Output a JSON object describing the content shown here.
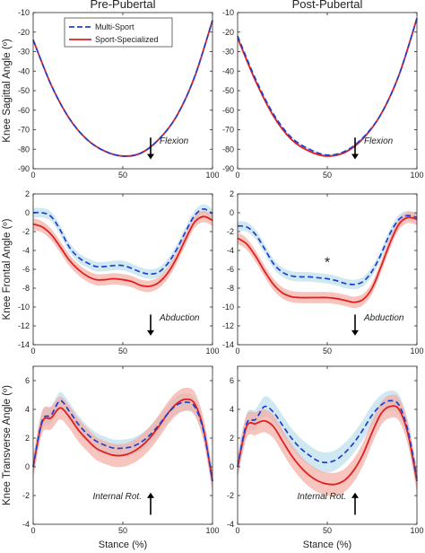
{
  "colors": {
    "multi_line": "#1f3fd0",
    "multi_band": "#bfe0ee",
    "spec_line": "#e02020",
    "spec_band": "#f3aba3"
  },
  "chart_data": [
    {
      "type": "line",
      "title": "Pre-Pubertal",
      "xlabel": "",
      "ylabel": "Knee Sagittal Angle (º)",
      "xlim": [
        0,
        100
      ],
      "ylim": [
        -90,
        -10
      ],
      "xticks": [
        "0",
        "50",
        "100"
      ],
      "yticks": [
        "-10",
        "-20",
        "-30",
        "-40",
        "-50",
        "-60",
        "-70",
        "-80",
        "-90"
      ],
      "annotation": "Flexion",
      "arrow": "down",
      "legend": {
        "position": "top-left",
        "entries": [
          "Multi-Sport",
          "Sport-Specialized"
        ]
      },
      "x": [
        0,
        10,
        20,
        30,
        40,
        50,
        60,
        70,
        80,
        90,
        100
      ],
      "series": [
        {
          "name": "Multi-Sport",
          "values": [
            -24,
            -47,
            -64,
            -75,
            -81,
            -83.5,
            -82,
            -75,
            -63,
            -43,
            -14
          ],
          "band": 0.5
        },
        {
          "name": "Sport-Specialized",
          "values": [
            -24,
            -47,
            -64,
            -75,
            -81,
            -83.5,
            -82,
            -75,
            -63,
            -43,
            -14
          ],
          "band": 0.5
        }
      ]
    },
    {
      "type": "line",
      "title": "Post-Pubertal",
      "xlabel": "",
      "ylabel": "",
      "xlim": [
        0,
        100
      ],
      "ylim": [
        -90,
        -10
      ],
      "xticks": [
        "0",
        "50",
        "100"
      ],
      "yticks": [
        "-10",
        "-20",
        "-30",
        "-40",
        "-50",
        "-60",
        "-70",
        "-80",
        "-90"
      ],
      "annotation": "Flexion",
      "arrow": "down",
      "x": [
        0,
        10,
        20,
        30,
        40,
        50,
        60,
        70,
        80,
        90,
        100
      ],
      "series": [
        {
          "name": "Multi-Sport",
          "values": [
            -22,
            -44,
            -62,
            -74,
            -80,
            -83,
            -81,
            -74,
            -62,
            -42,
            -13
          ],
          "band": 0.6
        },
        {
          "name": "Sport-Specialized",
          "values": [
            -23,
            -45,
            -63,
            -75,
            -81,
            -83.5,
            -81.5,
            -74.5,
            -62,
            -42,
            -13
          ],
          "band": 0.6
        }
      ]
    },
    {
      "type": "line",
      "title": "",
      "xlabel": "",
      "ylabel": "Knee Frontal Angle (º)",
      "xlim": [
        0,
        100
      ],
      "ylim": [
        -14,
        2
      ],
      "xticks": [
        "0",
        "50",
        "100"
      ],
      "yticks": [
        "2",
        "0",
        "-2",
        "-4",
        "-6",
        "-8",
        "-10",
        "-12",
        "-14"
      ],
      "annotation": "Abduction",
      "arrow": "down",
      "x": [
        0,
        5,
        10,
        15,
        20,
        25,
        30,
        35,
        40,
        45,
        50,
        55,
        60,
        65,
        70,
        75,
        80,
        85,
        90,
        95,
        100
      ],
      "series": [
        {
          "name": "Multi-Sport",
          "values": [
            0,
            0,
            -0.4,
            -1.8,
            -3.6,
            -4.7,
            -5.3,
            -5.7,
            -5.7,
            -5.6,
            -5.6,
            -5.9,
            -6.3,
            -6.5,
            -6.3,
            -5.4,
            -3.9,
            -2.0,
            -0.3,
            0.4,
            -0.1
          ],
          "band": 0.5
        },
        {
          "name": "Sport-Specialized",
          "values": [
            -1.2,
            -1.5,
            -2.3,
            -3.6,
            -5.0,
            -6.0,
            -6.7,
            -7.1,
            -7.1,
            -7.0,
            -7.1,
            -7.3,
            -7.7,
            -7.8,
            -7.4,
            -6.4,
            -4.8,
            -2.8,
            -1.0,
            -0.4,
            -0.8
          ],
          "band": 0.6
        }
      ]
    },
    {
      "type": "line",
      "title": "",
      "xlabel": "",
      "ylabel": "",
      "xlim": [
        0,
        100
      ],
      "ylim": [
        -14,
        2
      ],
      "xticks": [
        "0",
        "50",
        "100"
      ],
      "yticks": [
        "2",
        "0",
        "-2",
        "-4",
        "-6",
        "-8",
        "-10",
        "-12",
        "-14"
      ],
      "annotation": "Abduction",
      "arrow": "down",
      "significance": {
        "marker": "*",
        "x": 50,
        "y": -5.2
      },
      "x": [
        0,
        5,
        10,
        15,
        20,
        25,
        30,
        35,
        40,
        45,
        50,
        55,
        60,
        65,
        70,
        75,
        80,
        85,
        90,
        95,
        100
      ],
      "series": [
        {
          "name": "Multi-Sport",
          "values": [
            -1.4,
            -1.5,
            -2.3,
            -3.8,
            -5.4,
            -6.3,
            -6.7,
            -6.8,
            -6.8,
            -6.9,
            -7.0,
            -7.2,
            -7.5,
            -7.6,
            -7.3,
            -6.2,
            -4.4,
            -2.2,
            -0.7,
            -0.3,
            -0.5
          ],
          "band": 0.5
        },
        {
          "name": "Sport-Specialized",
          "values": [
            -2.7,
            -3.3,
            -4.6,
            -6.2,
            -7.6,
            -8.5,
            -8.9,
            -9.0,
            -9.0,
            -9.0,
            -9.0,
            -9.1,
            -9.3,
            -9.5,
            -9.2,
            -8.0,
            -5.7,
            -3.2,
            -1.2,
            -0.5,
            -0.7
          ],
          "band": 0.6
        }
      ]
    },
    {
      "type": "line",
      "title": "",
      "xlabel": "Stance (%)",
      "ylabel": "Knee Transverse Angle (º)",
      "xlim": [
        0,
        100
      ],
      "ylim": [
        -4,
        7
      ],
      "xticks": [
        "0",
        "50",
        "100"
      ],
      "yticks": [
        "6",
        "4",
        "2",
        "0",
        "-2",
        "-4"
      ],
      "annotation": "Internal Rot.",
      "arrow": "up",
      "x": [
        0,
        5,
        10,
        15,
        20,
        25,
        30,
        35,
        40,
        45,
        50,
        55,
        60,
        65,
        70,
        75,
        80,
        85,
        90,
        95,
        100
      ],
      "series": [
        {
          "name": "Multi-Sport",
          "values": [
            0,
            3.2,
            3.6,
            4.6,
            3.9,
            3.0,
            2.3,
            1.8,
            1.5,
            1.3,
            1.3,
            1.4,
            1.7,
            2.2,
            2.9,
            3.7,
            4.3,
            4.5,
            4.2,
            2.5,
            -1.0
          ],
          "band": 0.6
        },
        {
          "name": "Sport-Specialized",
          "values": [
            0,
            3.1,
            3.4,
            4.1,
            3.5,
            2.6,
            1.9,
            1.3,
            1.0,
            0.8,
            0.8,
            1.0,
            1.4,
            2.0,
            2.8,
            3.7,
            4.4,
            4.7,
            4.4,
            2.6,
            -1.0
          ],
          "band": 0.8
        }
      ]
    },
    {
      "type": "line",
      "title": "",
      "xlabel": "Stance (%)",
      "ylabel": "",
      "xlim": [
        0,
        100
      ],
      "ylim": [
        -4,
        7
      ],
      "xticks": [
        "0",
        "50",
        "100"
      ],
      "yticks": [
        "6",
        "4",
        "2",
        "0",
        "-2",
        "-4"
      ],
      "annotation": "Internal Rot.",
      "arrow": "up",
      "x": [
        0,
        5,
        10,
        15,
        20,
        25,
        30,
        35,
        40,
        45,
        50,
        55,
        60,
        65,
        70,
        75,
        80,
        85,
        90,
        95,
        100
      ],
      "series": [
        {
          "name": "Multi-Sport",
          "values": [
            0,
            3.0,
            3.3,
            4.2,
            3.8,
            2.9,
            2.0,
            1.3,
            0.8,
            0.4,
            0.3,
            0.5,
            1.0,
            1.7,
            2.6,
            3.6,
            4.3,
            4.6,
            4.3,
            2.5,
            -0.8
          ],
          "band": 0.7
        },
        {
          "name": "Sport-Specialized",
          "values": [
            0,
            2.8,
            3.0,
            3.2,
            2.8,
            1.8,
            0.8,
            0.0,
            -0.6,
            -1.0,
            -1.2,
            -1.2,
            -0.9,
            -0.2,
            0.9,
            2.4,
            3.7,
            4.2,
            4.0,
            2.3,
            -1.0
          ],
          "band": 0.8
        }
      ]
    }
  ]
}
